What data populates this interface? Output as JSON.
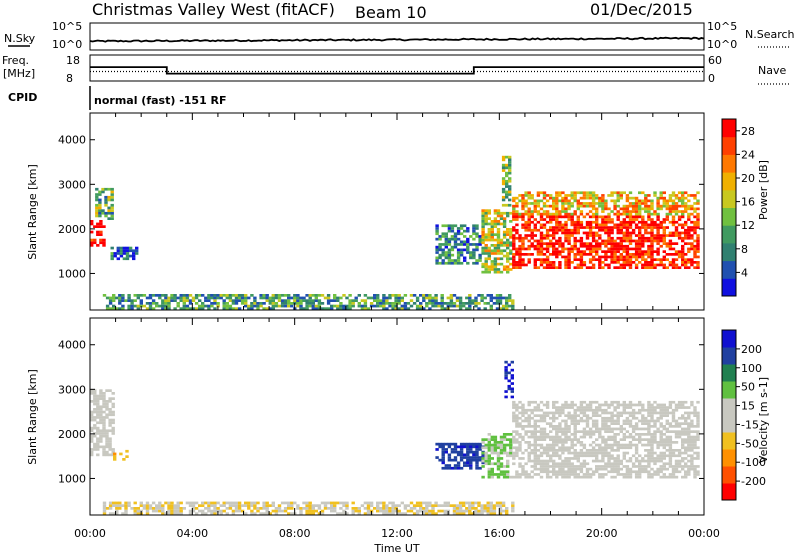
{
  "header": {
    "title": "Christmas Valley West (fitACF)",
    "beam": "Beam 10",
    "date": "01/Dec/2015"
  },
  "nsky_panel": {
    "left_label": "N.Sky",
    "right_label": "N.Search",
    "ticks": [
      "10^5",
      "10^0"
    ]
  },
  "freq_panel": {
    "left_label_1": "Freq.",
    "left_label_2": "[MHz]",
    "right_label": "Nave",
    "left_ticks": [
      "18",
      "8"
    ],
    "right_ticks": [
      "60",
      "0"
    ],
    "freq_segments": [
      {
        "start": 0.0,
        "end": 3.0,
        "value": 13.5
      },
      {
        "start": 3.0,
        "end": 15.0,
        "value": 10.0
      },
      {
        "start": 15.0,
        "end": 24.0,
        "value": 13.5
      }
    ],
    "nave": 22
  },
  "cpid_panel": {
    "label": "CPID",
    "text": "normal (fast) -151 RF"
  },
  "time_axis": {
    "title": "Time UT",
    "ticks": [
      "00:00",
      "04:00",
      "08:00",
      "12:00",
      "16:00",
      "20:00",
      "00:00"
    ]
  },
  "colors": {
    "power_scale": [
      "#1010e0",
      "#2050b0",
      "#308070",
      "#409a60",
      "#70c040",
      "#c8c820",
      "#f0b000",
      "#ff7800",
      "#ff4000",
      "#ff0000"
    ],
    "velocity_scale": [
      "#ff0000",
      "#ff5000",
      "#ff9000",
      "#f0c020",
      "#c8c8c0",
      "#c8c8c0",
      "#60c040",
      "#208050",
      "#2040a0",
      "#1010d0"
    ],
    "ground_scatter": "#c8c8c0"
  },
  "chart_data": [
    {
      "type": "heatmap",
      "title": "Power",
      "ylabel": "Slant Range [km]",
      "xlabel": "Time UT",
      "xlim": [
        0,
        24
      ],
      "ylim": [
        180,
        4600
      ],
      "yticks": [
        1000,
        2000,
        3000,
        4000
      ],
      "colorbar": {
        "label": "Power [dB]",
        "ticks": [
          "28",
          "24",
          "20",
          "16",
          "12",
          "8",
          "4"
        ],
        "range": [
          0,
          30
        ]
      },
      "regions": [
        {
          "t0": 0.0,
          "t1": 0.5,
          "r0": 1600,
          "r1": 2200,
          "value": 28
        },
        {
          "t0": 0.2,
          "t1": 0.9,
          "r0": 2200,
          "r1": 2900,
          "value": 12
        },
        {
          "t0": 0.8,
          "t1": 1.8,
          "r0": 1300,
          "r1": 1600,
          "value": 6
        },
        {
          "t0": 13.5,
          "t1": 15.2,
          "r0": 1200,
          "r1": 2100,
          "value": 8
        },
        {
          "t0": 15.3,
          "t1": 16.4,
          "r0": 1000,
          "r1": 2400,
          "value": 16
        },
        {
          "t0": 16.1,
          "t1": 16.4,
          "r0": 2500,
          "r1": 3600,
          "value": 14
        },
        {
          "t0": 16.5,
          "t1": 23.8,
          "r0": 1100,
          "r1": 2300,
          "value": 28
        },
        {
          "t0": 16.5,
          "t1": 23.8,
          "r0": 2300,
          "r1": 2800,
          "value": 20
        },
        {
          "t0": 0.5,
          "t1": 16.5,
          "r0": 180,
          "r1": 500,
          "value": 10
        }
      ]
    },
    {
      "type": "heatmap",
      "title": "Velocity",
      "ylabel": "Slant Range [km]",
      "xlabel": "Time UT",
      "xlim": [
        0,
        24
      ],
      "ylim": [
        180,
        4600
      ],
      "yticks": [
        1000,
        2000,
        3000,
        4000
      ],
      "colorbar": {
        "label": "Velocity [m s-1]",
        "ticks": [
          "200",
          "100",
          "50",
          "15",
          "-15",
          "-50",
          "-100",
          "-200"
        ],
        "range": [
          -250,
          250
        ]
      },
      "regions": [
        {
          "t0": 0.0,
          "t1": 0.9,
          "r0": 1500,
          "r1": 3000,
          "value": 0
        },
        {
          "t0": 0.9,
          "t1": 1.5,
          "r0": 1400,
          "r1": 1600,
          "value": -80
        },
        {
          "t0": 13.5,
          "t1": 15.3,
          "r0": 1200,
          "r1": 1800,
          "value": 180
        },
        {
          "t0": 15.3,
          "t1": 16.4,
          "r0": 1000,
          "r1": 2000,
          "value": 60
        },
        {
          "t0": 16.2,
          "t1": 16.5,
          "r0": 2800,
          "r1": 3600,
          "value": 220
        },
        {
          "t0": 16.5,
          "t1": 23.8,
          "r0": 1000,
          "r1": 2700,
          "value": 0
        },
        {
          "t0": 0.5,
          "t1": 16.5,
          "r0": 180,
          "r1": 450,
          "value": -40
        }
      ]
    }
  ]
}
